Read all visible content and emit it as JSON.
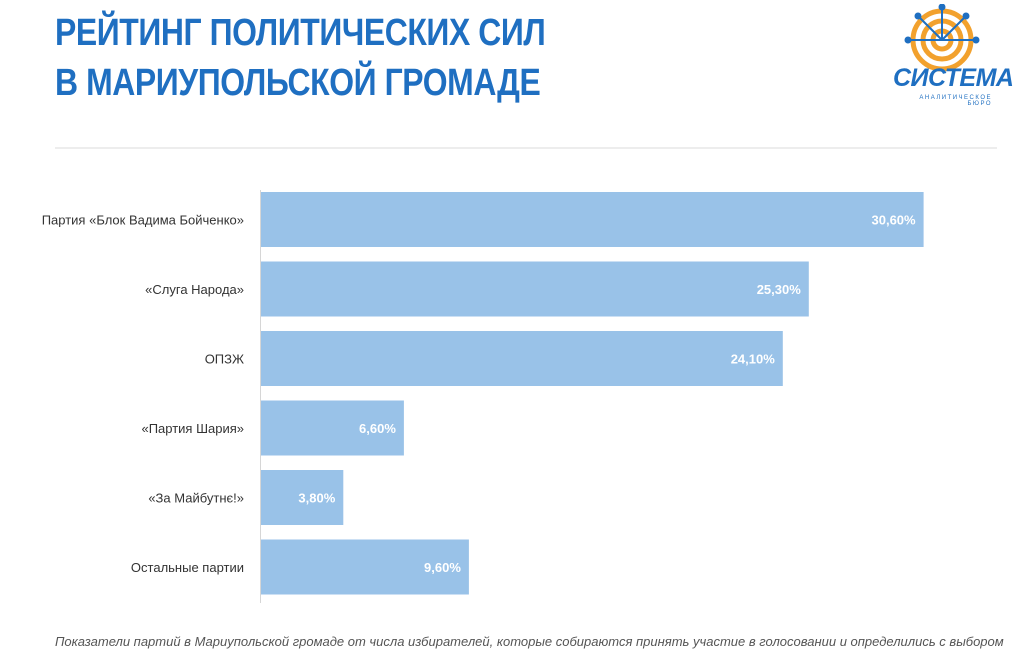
{
  "header": {
    "title_line1": "РЕЙТИНГ ПОЛИТИЧЕСКИХ СИЛ",
    "title_line2": "В МАРИУПОЛЬСКОЙ ГРОМАДЕ"
  },
  "logo": {
    "word": "СИСТЕМА",
    "subtitle": "АНАЛИТИЧЕСКОЕ БЮРО",
    "color_orange": "#f2a12d",
    "color_blue": "#1f6fc1"
  },
  "colors": {
    "title": "#1f6fc1",
    "bar": "#99c2e8"
  },
  "chart_data": {
    "type": "bar",
    "orientation": "horizontal",
    "categories": [
      "Партия «Блок Вадима Бойченко»",
      "«Слуга Народа»",
      "ОПЗЖ",
      "«Партия Шария»",
      "«За Майбутнє!»",
      "Остальные партии"
    ],
    "values": [
      30.6,
      25.3,
      24.1,
      6.6,
      3.8,
      9.6
    ],
    "value_labels": [
      "30,60%",
      "25,30%",
      "24,10%",
      "6,60%",
      "3,80%",
      "9,60%"
    ],
    "xlim": [
      0,
      34.5
    ],
    "grid": false,
    "legend": "none"
  },
  "footnote": "Показатели партий в Мариупольской громаде от числа избирателей, которые собираются принять участие в голосовании и определились с выбором"
}
